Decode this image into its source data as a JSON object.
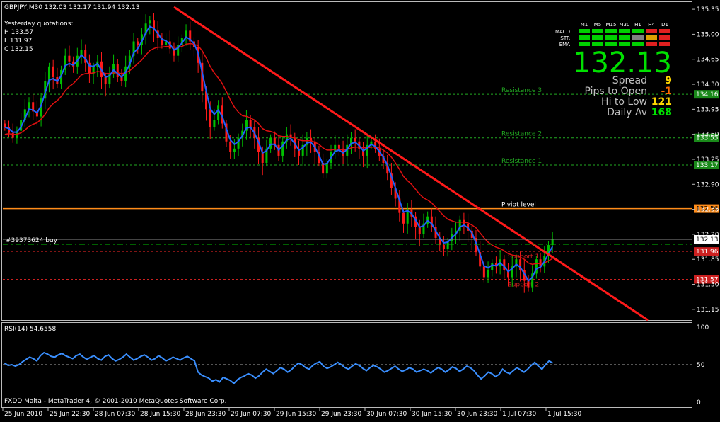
{
  "header": {
    "symbol_line": "GBPJPY,M30  132.03 132.17 131.94 132.13",
    "yesterday_title": "Yesterday quotations:",
    "yesterday_h": "H 133.57",
    "yesterday_l": "L 131.97",
    "yesterday_c": "C 132.15"
  },
  "footer": {
    "copyright": "FXDD Malta - MetaTrader 4, © 2001-2010 MetaQuotes Software Corp."
  },
  "rsi": {
    "label": "RSI(14) 54.6558",
    "ticks": [
      "100",
      "50",
      "0"
    ],
    "values": [
      52,
      49,
      50,
      48,
      50,
      54,
      57,
      60,
      58,
      55,
      62,
      66,
      64,
      61,
      60,
      63,
      65,
      62,
      60,
      58,
      62,
      64,
      60,
      57,
      60,
      62,
      58,
      56,
      61,
      63,
      58,
      55,
      57,
      60,
      64,
      60,
      56,
      58,
      61,
      63,
      60,
      56,
      58,
      62,
      59,
      55,
      57,
      60,
      58,
      56,
      59,
      61,
      58,
      55,
      40,
      36,
      34,
      32,
      28,
      30,
      27,
      33,
      31,
      29,
      25,
      30,
      33,
      35,
      38,
      36,
      32,
      35,
      40,
      44,
      41,
      38,
      42,
      46,
      44,
      40,
      43,
      48,
      52,
      50,
      46,
      44,
      49,
      52,
      54,
      48,
      45,
      47,
      50,
      53,
      50,
      46,
      44,
      48,
      51,
      49,
      45,
      42,
      46,
      49,
      47,
      44,
      40,
      42,
      45,
      48,
      44,
      41,
      43,
      46,
      44,
      40,
      42,
      44,
      42,
      39,
      43,
      46,
      44,
      40,
      43,
      47,
      45,
      41,
      44,
      48,
      46,
      42,
      36,
      31,
      35,
      40,
      38,
      34,
      37,
      44,
      40,
      38,
      42,
      46,
      43,
      40,
      44,
      49,
      53,
      48,
      44,
      50,
      55,
      52
    ]
  },
  "panel": {
    "timeframes": [
      "M1",
      "M5",
      "M15",
      "M30",
      "H1",
      "H4",
      "D1"
    ],
    "rows": [
      {
        "name": "MACD",
        "colors": [
          "#00d000",
          "#00d000",
          "#00d000",
          "#00d000",
          "#00d000",
          "#e02020",
          "#e02020"
        ]
      },
      {
        "name": "STR",
        "colors": [
          "#00d000",
          "#00d000",
          "#00d000",
          "#00d000",
          "#808080",
          "#e0a000",
          "#e02020"
        ]
      },
      {
        "name": "EMA",
        "colors": [
          "#00d000",
          "#00d000",
          "#00d000",
          "#00d000",
          "#00d000",
          "#e02020",
          "#e02020"
        ]
      }
    ],
    "price": "132.13",
    "stats": [
      {
        "label": "Spread",
        "value": "9",
        "color": "#ffd700"
      },
      {
        "label": "Pips to Open",
        "value": "-1",
        "color": "#ff6a00"
      },
      {
        "label": "Hi to Low",
        "value": "121",
        "color": "#ffd700"
      },
      {
        "label": "Daily Av",
        "value": "168",
        "color": "#00e000"
      }
    ]
  },
  "levels": [
    {
      "name": "Resistance 3",
      "price": 134.16,
      "tag": "134.16",
      "color": "#22aa22",
      "tag_bg": "#1a8a1a"
    },
    {
      "name": "Resistance 2",
      "price": 133.55,
      "tag": "133.55",
      "color": "#22aa22",
      "tag_bg": "#1a8a1a"
    },
    {
      "name": "Resistance 1",
      "price": 133.17,
      "tag": "133.17",
      "color": "#22aa22",
      "tag_bg": "#1a8a1a"
    },
    {
      "name": "Piviot level",
      "price": 132.56,
      "tag": "132.56",
      "color": "#ff8c1a",
      "tag_bg": "#ff8c1a"
    },
    {
      "name": "Support 1",
      "price": 131.96,
      "tag": "131.96",
      "color": "#cc2020",
      "tag_bg": "#cc2020"
    },
    {
      "name": "Support 2",
      "price": 131.57,
      "tag": "131.57",
      "color": "#cc2020",
      "tag_bg": "#cc2020"
    }
  ],
  "order": {
    "label": "#39373624 buy",
    "price": 132.13,
    "tag": "132.13"
  },
  "chart_data": {
    "type": "candlestick",
    "symbol": "GBPJPY",
    "timeframe": "M30",
    "ylim": [
      131.0,
      135.45
    ],
    "price_ticks": [
      "135.35",
      "135.00",
      "134.65",
      "134.30",
      "133.95",
      "133.60",
      "133.25",
      "132.90",
      "132.55",
      "132.20",
      "131.85",
      "131.50",
      "131.15"
    ],
    "time_ticks": [
      "25 Jun 2010",
      "25 Jun 22:30",
      "28 Jun 07:30",
      "28 Jun 15:30",
      "28 Jun 23:30",
      "29 Jun 07:30",
      "29 Jun 15:30",
      "29 Jun 23:30",
      "30 Jun 07:30",
      "30 Jun 15:30",
      "30 Jun 23:30",
      "1 Jul 07:30",
      "1 Jul 15:30"
    ],
    "close_series": [
      133.7,
      133.62,
      133.55,
      133.65,
      133.8,
      133.95,
      134.05,
      133.92,
      133.85,
      134.1,
      134.35,
      134.55,
      134.4,
      134.3,
      134.5,
      134.7,
      134.62,
      134.55,
      134.7,
      134.78,
      134.6,
      134.45,
      134.55,
      134.62,
      134.4,
      134.3,
      134.45,
      134.58,
      134.4,
      134.35,
      134.55,
      134.7,
      134.9,
      134.85,
      135.0,
      135.15,
      135.2,
      135.05,
      134.95,
      134.85,
      134.9,
      134.8,
      134.7,
      134.85,
      134.95,
      135.05,
      134.9,
      134.82,
      134.6,
      134.2,
      133.95,
      133.7,
      133.8,
      134.0,
      133.75,
      133.5,
      133.35,
      133.4,
      133.55,
      133.65,
      133.8,
      133.7,
      133.55,
      133.35,
      133.2,
      133.4,
      133.55,
      133.45,
      133.3,
      133.5,
      133.6,
      133.55,
      133.4,
      133.3,
      133.45,
      133.55,
      133.5,
      133.35,
      133.2,
      133.05,
      133.2,
      133.35,
      133.45,
      133.4,
      133.3,
      133.45,
      133.55,
      133.5,
      133.4,
      133.3,
      133.45,
      133.5,
      133.4,
      133.3,
      133.2,
      133.05,
      132.85,
      132.7,
      132.5,
      132.35,
      132.55,
      132.45,
      132.3,
      132.2,
      132.35,
      132.45,
      132.3,
      132.15,
      132.05,
      132.0,
      132.1,
      132.2,
      132.25,
      132.4,
      132.35,
      132.25,
      132.15,
      131.95,
      131.75,
      131.6,
      131.7,
      131.8,
      131.75,
      131.85,
      131.7,
      131.6,
      131.75,
      131.85,
      131.7,
      131.55,
      131.45,
      131.65,
      131.85,
      131.75,
      131.9,
      132.05,
      132.13
    ],
    "ema_fast": [
      133.7,
      133.68,
      133.63,
      133.63,
      133.7,
      133.82,
      133.95,
      133.94,
      133.9,
      134.0,
      134.18,
      134.36,
      134.38,
      134.34,
      134.42,
      134.56,
      134.59,
      134.57,
      134.63,
      134.71,
      134.66,
      134.56,
      134.55,
      134.59,
      134.5,
      134.4,
      134.42,
      134.5,
      134.45,
      134.4,
      134.47,
      134.58,
      134.74,
      134.8,
      134.9,
      135.02,
      135.11,
      135.08,
      135.01,
      134.93,
      134.91,
      134.86,
      134.78,
      134.81,
      134.88,
      134.96,
      134.93,
      134.87,
      134.74,
      134.47,
      134.21,
      133.96,
      133.88,
      133.94,
      133.85,
      133.68,
      133.52,
      133.46,
      133.5,
      133.58,
      133.69,
      133.7,
      133.62,
      133.49,
      133.34,
      133.37,
      133.46,
      133.46,
      133.38,
      133.44,
      133.52,
      133.54,
      133.47,
      133.38,
      133.41,
      133.48,
      133.49,
      133.42,
      133.31,
      133.18,
      133.19,
      133.27,
      133.36,
      133.38,
      133.34,
      133.39,
      133.47,
      133.49,
      133.44,
      133.37,
      133.41,
      133.46,
      133.43,
      133.36,
      133.28,
      133.17,
      133.01,
      132.85,
      132.68,
      132.51,
      132.53,
      132.49,
      132.4,
      132.3,
      132.32,
      132.39,
      132.35,
      132.25,
      132.15,
      132.08,
      132.09,
      132.15,
      132.2,
      132.3,
      132.33,
      132.29,
      132.22,
      132.08,
      131.92,
      131.76,
      131.73,
      131.77,
      131.76,
      131.8,
      131.75,
      131.68,
      131.72,
      131.78,
      131.74,
      131.65,
      131.55,
      131.6,
      131.72,
      131.74,
      131.82,
      131.93,
      132.03
    ],
    "ema_slow": [
      133.6,
      133.61,
      133.6,
      133.6,
      133.62,
      133.66,
      133.71,
      133.74,
      133.76,
      133.81,
      133.88,
      133.97,
      134.03,
      134.07,
      134.13,
      134.21,
      134.27,
      134.31,
      134.37,
      134.43,
      134.45,
      134.45,
      134.46,
      134.48,
      134.47,
      134.45,
      134.45,
      134.46,
      134.46,
      134.45,
      134.46,
      134.49,
      134.54,
      134.59,
      134.64,
      134.71,
      134.77,
      134.8,
      134.82,
      134.82,
      134.83,
      134.83,
      134.82,
      134.82,
      134.83,
      134.86,
      134.87,
      134.86,
      134.84,
      134.77,
      134.67,
      134.55,
      134.46,
      134.39,
      134.31,
      134.2,
      134.08,
      133.98,
      133.91,
      133.86,
      133.85,
      133.83,
      133.8,
      133.75,
      133.68,
      133.65,
      133.64,
      133.62,
      133.58,
      133.57,
      133.57,
      133.56,
      133.55,
      133.52,
      133.51,
      133.51,
      133.51,
      133.49,
      133.46,
      133.41,
      133.38,
      133.38,
      133.39,
      133.39,
      133.38,
      133.39,
      133.41,
      133.42,
      133.42,
      133.41,
      133.41,
      133.42,
      133.42,
      133.41,
      133.38,
      133.34,
      133.28,
      133.2,
      133.11,
      133.01,
      132.95,
      132.9,
      132.83,
      132.76,
      132.71,
      132.68,
      132.64,
      132.58,
      132.52,
      132.46,
      132.41,
      132.39,
      132.37,
      132.37,
      132.37,
      132.36,
      132.33,
      132.29,
      132.22,
      132.15,
      132.09,
      132.05,
      132.02,
      132.0,
      131.97,
      131.93,
      131.91,
      131.9,
      131.88,
      131.85,
      131.8,
      131.78,
      131.79,
      131.79,
      131.8,
      131.83,
      131.86
    ]
  }
}
